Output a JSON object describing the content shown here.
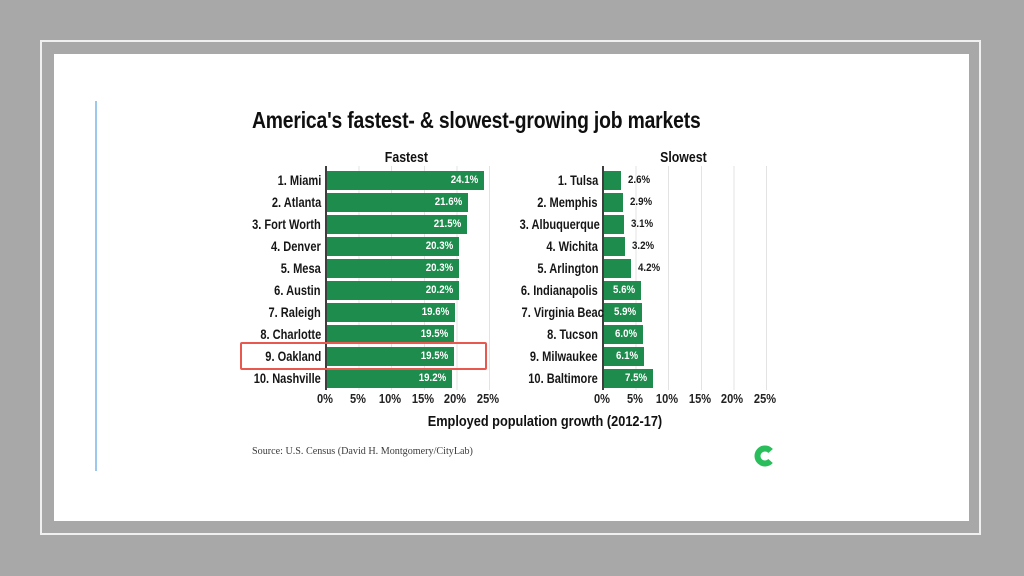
{
  "page": {
    "background_color": "#a8a8a8",
    "frame_border_color": "#f0f0f0",
    "slide_background": "#ffffff",
    "guide_line_color": "#9cc7ee"
  },
  "slide": {
    "title": "America's fastest- & slowest-growing job markets",
    "source": "Source: U.S. Census (David H. Montgomery/CityLab)",
    "logo_icon": "citylab-c-logo",
    "logo_color": "#2abd5b"
  },
  "chart_data": {
    "type": "bar",
    "orientation": "horizontal",
    "title": "America's fastest- & slowest-growing job markets",
    "xlabel": "Employed population growth (2012-17)",
    "xlim": [
      0,
      25
    ],
    "x_ticks": [
      "0%",
      "5%",
      "10%",
      "15%",
      "20%",
      "25%"
    ],
    "grid": "vertical-light-gray",
    "bar_color": "#1e8c4d",
    "panels": [
      {
        "label": "Fastest",
        "categories": [
          "1. Miami",
          "2. Atlanta",
          "3. Fort Worth",
          "4. Denver",
          "5. Mesa",
          "6. Austin",
          "7. Raleigh",
          "8. Charlotte",
          "9. Oakland",
          "10. Nashville"
        ],
        "values": [
          24.1,
          21.6,
          21.5,
          20.3,
          20.3,
          20.2,
          19.6,
          19.5,
          19.5,
          19.2
        ],
        "value_labels": [
          "24.1%",
          "21.6%",
          "21.5%",
          "20.3%",
          "20.3%",
          "20.2%",
          "19.6%",
          "19.5%",
          "19.5%",
          "19.2%"
        ]
      },
      {
        "label": "Slowest",
        "categories": [
          "1. Tulsa",
          "2. Memphis",
          "3. Albuquerque",
          "4. Wichita",
          "5. Arlington",
          "6. Indianapolis",
          "7. Virginia Beach",
          "8. Tucson",
          "9. Milwaukee",
          "10. Baltimore"
        ],
        "values": [
          2.6,
          2.9,
          3.1,
          3.2,
          4.2,
          5.6,
          5.9,
          6.0,
          6.1,
          7.5
        ],
        "value_labels": [
          "2.6%",
          "2.9%",
          "3.1%",
          "3.2%",
          "4.2%",
          "5.6%",
          "5.9%",
          "6.0%",
          "6.1%",
          "7.5%"
        ]
      }
    ],
    "highlight": {
      "panel_index": 0,
      "category": "9. Oakland",
      "box_color": "#e8584e"
    }
  }
}
